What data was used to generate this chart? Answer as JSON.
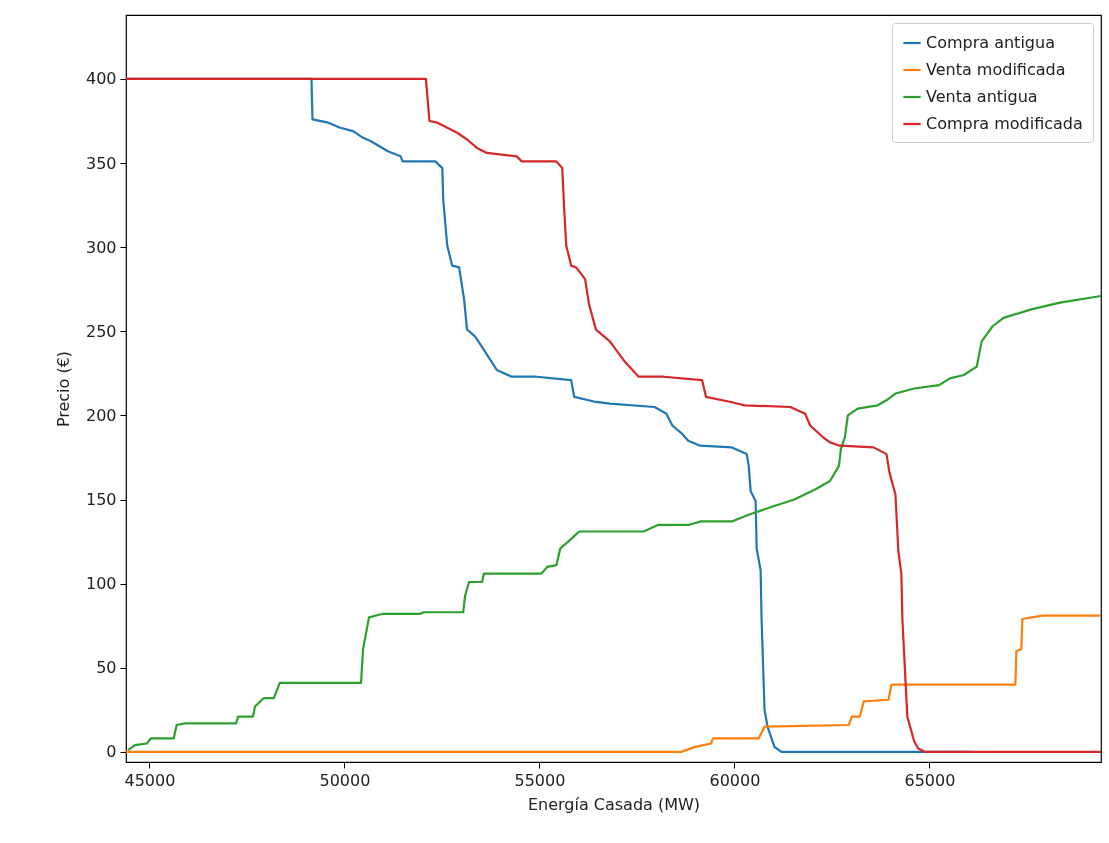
{
  "chart_data": {
    "type": "line",
    "xlabel": "Energía Casada (MW)",
    "ylabel": "Precio (€)",
    "xlim": [
      44400,
      69400
    ],
    "ylim": [
      -6,
      438
    ],
    "xticks": [
      45000,
      50000,
      55000,
      60000,
      65000
    ],
    "yticks": [
      0,
      50,
      100,
      150,
      200,
      250,
      300,
      350,
      400
    ],
    "grid": false,
    "legend": "top right",
    "line_style": "solid",
    "marker": "none",
    "series": [
      {
        "name": "Compra antigua",
        "color": "#1f77b4",
        "x": [
          44400,
          49156,
          49181,
          49588,
          49893,
          50224,
          50478,
          50681,
          51113,
          51442,
          51493,
          52332,
          52510,
          52535,
          52637,
          52764,
          52942,
          53069,
          53145,
          53349,
          53578,
          53908,
          54290,
          54925,
          55815,
          55891,
          56450,
          56808,
          57952,
          58257,
          58409,
          58663,
          58816,
          59121,
          59934,
          60316,
          60367,
          60417,
          60545,
          60570,
          60672,
          60697,
          60773,
          60849,
          61027,
          61205,
          66050
        ],
        "values": [
          400,
          400,
          376,
          374,
          371,
          369,
          365,
          363,
          357,
          354,
          351,
          351,
          347,
          328,
          301,
          289,
          288,
          269,
          251,
          247,
          239,
          227,
          223,
          223,
          221,
          211,
          208,
          207,
          205,
          201,
          194,
          189,
          185,
          182,
          181,
          177,
          170,
          155,
          149,
          121,
          108,
          79,
          25,
          15,
          3,
          0,
          0
        ]
      },
      {
        "name": "Venta modificada",
        "color": "#ff7f0e",
        "x": [
          44400,
          58638,
          58994,
          59400,
          59451,
          60621,
          60773,
          62934,
          63010,
          63214,
          63316,
          63951,
          64027,
          67204,
          67230,
          67357,
          67382,
          67891,
          69400
        ],
        "values": [
          0,
          0,
          3,
          5,
          8,
          8,
          15,
          16,
          21,
          21,
          30,
          31,
          40,
          40,
          60,
          61,
          79,
          81,
          81
        ]
      },
      {
        "name": "Venta antigua",
        "color": "#2ca02c",
        "x": [
          44453,
          44631,
          44936,
          45038,
          45623,
          45699,
          45903,
          47224,
          47275,
          47656,
          47707,
          47936,
          48190,
          48343,
          50427,
          50478,
          50631,
          50961,
          51927,
          52029,
          53046,
          53096,
          53197,
          53528,
          53579,
          55053,
          55206,
          55435,
          55537,
          55739,
          56019,
          57672,
          58053,
          58841,
          59146,
          59934,
          60367,
          61002,
          61536,
          62070,
          62451,
          62680,
          62731,
          62832,
          62909,
          63163,
          63671,
          63900,
          64129,
          64612,
          65248,
          65527,
          65883,
          66213,
          66340,
          66620,
          66899,
          67611,
          68348,
          69400
        ],
        "values": [
          1,
          4,
          5,
          8,
          8,
          16,
          17,
          17,
          21,
          21,
          27,
          32,
          32,
          41,
          41,
          61,
          80,
          82,
          82,
          83,
          83,
          93,
          101,
          101,
          106,
          106,
          110,
          111,
          121,
          125,
          131,
          131,
          135,
          135,
          137,
          137,
          141,
          146,
          150,
          156,
          161,
          170,
          180,
          187,
          200,
          204,
          206,
          209,
          213,
          216,
          218,
          222,
          224,
          229,
          244,
          253,
          258,
          263,
          267,
          271
        ]
      },
      {
        "name": "Compra modificada",
        "color": "#d62728",
        "x": [
          44400,
          52090,
          52181,
          52385,
          52639,
          52891,
          53145,
          53399,
          53654,
          54417,
          54544,
          55433,
          55586,
          55637,
          55688,
          55815,
          55942,
          56172,
          56273,
          56450,
          56806,
          57188,
          57544,
          58180,
          59171,
          59273,
          59908,
          60264,
          61434,
          61815,
          61942,
          62273,
          62451,
          62705,
          63569,
          63900,
          63976,
          64129,
          64205,
          64281,
          64307,
          64434,
          64612,
          64713,
          64891,
          69400
        ],
        "values": [
          400,
          400,
          375,
          374,
          371,
          368,
          364,
          359,
          356,
          354,
          351,
          351,
          347,
          322,
          301,
          289,
          288,
          281,
          266,
          251,
          244,
          232,
          223,
          223,
          221,
          211,
          208,
          206,
          205,
          201,
          194,
          187,
          184,
          182,
          181,
          177,
          166,
          153,
          119,
          106,
          79,
          21,
          6,
          2,
          0,
          0
        ]
      }
    ]
  }
}
